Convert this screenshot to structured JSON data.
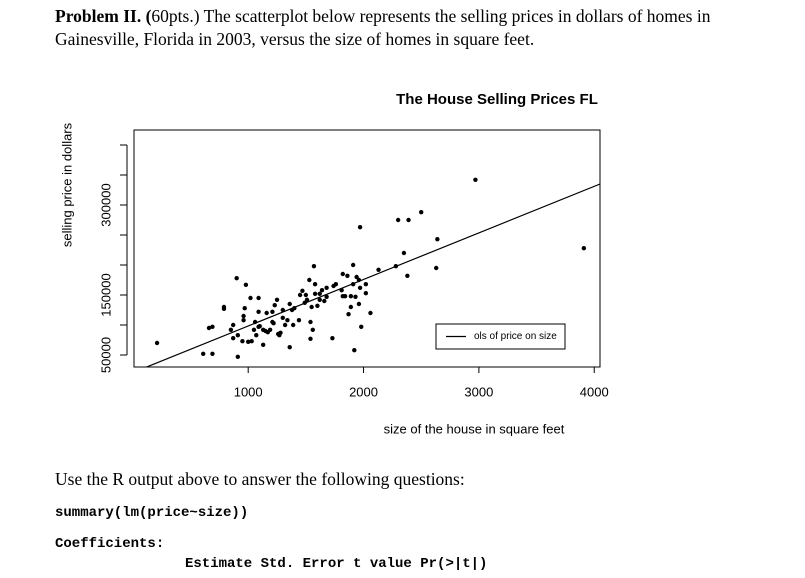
{
  "document": {
    "problem_label": "Problem II. (",
    "problem_lines": [
      "60pts.) The scatterplot below represents the selling prices in dollars of homes in",
      "Gainesville, Florida in 2003, versus the size of homes in square feet."
    ],
    "instruction": "Use the R output above to answer the following questions:",
    "code_lines": [
      "summary(lm(price~size))",
      "Coefficients:",
      "Estimate Std. Error t value Pr(>|t|)"
    ]
  },
  "chart_data": {
    "type": "scatter",
    "title": "The House Selling Prices FL",
    "xlabel": "size of the house in square feet",
    "ylabel": "selling price in dollars",
    "color": "#000000",
    "x": [
      210,
      610,
      690,
      910,
      660,
      690,
      790,
      790,
      900,
      850,
      870,
      870,
      910,
      950,
      970,
      960,
      960,
      980,
      1000,
      1030,
      1020,
      1050,
      1060,
      1070,
      1090,
      1090,
      1090,
      1100,
      1130,
      1130,
      1150,
      1160,
      1170,
      1190,
      1210,
      1210,
      1220,
      1230,
      1250,
      1260,
      1270,
      1280,
      1300,
      1300,
      1320,
      1340,
      1360,
      1360,
      1380,
      1390,
      1400,
      1440,
      1450,
      1470,
      1490,
      1500,
      1510,
      1530,
      1540,
      1540,
      1550,
      1560,
      1580,
      1580,
      1600,
      1620,
      1620,
      1640,
      1660,
      1680,
      1730,
      1680,
      1740,
      1760,
      1810,
      1820,
      1840,
      1890,
      1870,
      1890,
      1930,
      1960,
      1970,
      1980,
      1920,
      1910,
      1960,
      2020,
      1910,
      1940,
      1860,
      1970,
      2020,
      2130,
      2060,
      2350,
      2280,
      2390,
      2300,
      2380,
      2500,
      2630,
      2640,
      2970,
      3910,
      1570,
      1820
    ],
    "y": [
      70000,
      52000,
      52000,
      47000,
      95000,
      97000,
      127000,
      130000,
      178000,
      92000,
      100000,
      78000,
      83000,
      73000,
      128000,
      115000,
      108000,
      167000,
      72000,
      73000,
      145000,
      92000,
      105000,
      83000,
      145000,
      122000,
      97000,
      98000,
      92000,
      67000,
      90000,
      120000,
      88000,
      92000,
      105000,
      122000,
      103000,
      133000,
      142000,
      85000,
      83000,
      87000,
      112000,
      125000,
      100000,
      108000,
      135000,
      63000,
      125000,
      100000,
      128000,
      108000,
      150000,
      157000,
      137000,
      150000,
      142000,
      175000,
      77000,
      105000,
      130000,
      92000,
      152000,
      168000,
      132000,
      152000,
      142000,
      158000,
      140000,
      147000,
      78000,
      162000,
      165000,
      168000,
      158000,
      185000,
      148000,
      148000,
      118000,
      130000,
      147000,
      135000,
      162000,
      97000,
      58000,
      168000,
      175000,
      168000,
      200000,
      180000,
      182000,
      263000,
      153000,
      192000,
      120000,
      220000,
      198000,
      275000,
      275000,
      182000,
      288000,
      195000,
      243000,
      342000,
      228000,
      198000,
      148000
    ],
    "xlim": [
      10,
      4050
    ],
    "ylim": [
      30000,
      425000
    ],
    "xticks": [
      1000,
      2000,
      3000,
      4000
    ],
    "yticks": [
      50000,
      150000,
      300000
    ],
    "yticks_unlabeled": [
      100000,
      200000,
      250000,
      350000,
      400000
    ],
    "fit": {
      "name": "ols of price on size",
      "intercept": 20700,
      "slope": 77.6
    },
    "legend": "lower right"
  }
}
